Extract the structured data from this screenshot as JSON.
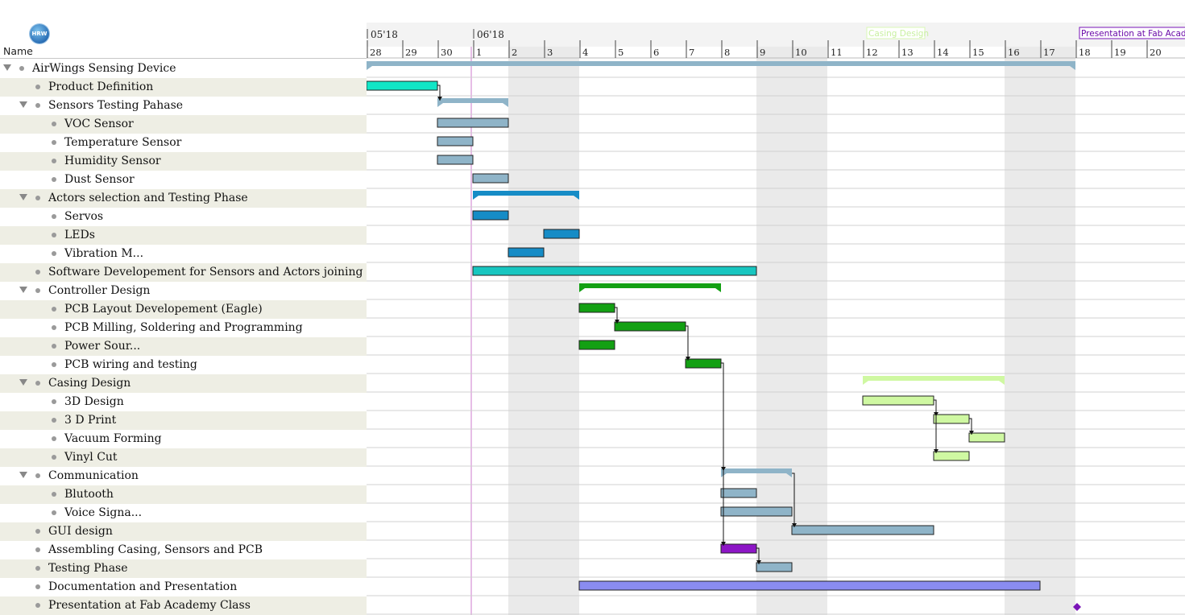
{
  "header": {
    "logo_text": "HRW",
    "name_column": "Name",
    "months": [
      {
        "label": "05'18",
        "day_index": 0
      },
      {
        "label": "06'18",
        "day_index": 3
      }
    ],
    "days": [
      "28",
      "29",
      "30",
      "1",
      "2",
      "3",
      "4",
      "5",
      "6",
      "7",
      "8",
      "9",
      "10",
      "11",
      "12",
      "13",
      "14",
      "15",
      "16",
      "17",
      "18",
      "19",
      "20"
    ],
    "milestone_flags": [
      {
        "label": "Casing Design",
        "day_index": 14
      },
      {
        "label": "Presentation at Fab Academy Class",
        "day_index": 20
      }
    ]
  },
  "colors": {
    "summary": "#8fb4c8",
    "default": "#8fb4c8",
    "teal": "#11e6c6",
    "blue": "#168cc6",
    "cyan": "#18c6c0",
    "green": "#13a013",
    "light_green": "#cff8a2",
    "purple": "#8d16c6",
    "lavender": "#8a8cf0",
    "diamond": "#7a14b8",
    "weekend": "#eaeaea",
    "today_line": "#e6bde6"
  },
  "tasks": [
    {
      "name": "AirWings Sensing Device",
      "level": 0,
      "expandable": true,
      "summary": true,
      "start": 0,
      "end": 20,
      "color": "summary"
    },
    {
      "name": "Product Definition",
      "level": 1,
      "expandable": false,
      "start": 0,
      "end": 2,
      "color": "teal"
    },
    {
      "name": "Sensors Testing Pahase",
      "level": 1,
      "expandable": true,
      "summary": true,
      "start": 2,
      "end": 4,
      "color": "summary"
    },
    {
      "name": "VOC Sensor",
      "level": 2,
      "expandable": false,
      "start": 2,
      "end": 4,
      "color": "default"
    },
    {
      "name": "Temperature Sensor",
      "level": 2,
      "expandable": false,
      "start": 2,
      "end": 3,
      "color": "default"
    },
    {
      "name": "Humidity Sensor",
      "level": 2,
      "expandable": false,
      "start": 2,
      "end": 3,
      "color": "default"
    },
    {
      "name": "Dust Sensor",
      "level": 2,
      "expandable": false,
      "start": 3,
      "end": 4,
      "color": "default"
    },
    {
      "name": "Actors selection and Testing Phase",
      "level": 1,
      "expandable": true,
      "summary": true,
      "start": 3,
      "end": 6,
      "color": "blue"
    },
    {
      "name": "Servos",
      "level": 2,
      "expandable": false,
      "start": 3,
      "end": 4,
      "color": "blue"
    },
    {
      "name": "LEDs",
      "level": 2,
      "expandable": false,
      "start": 5,
      "end": 6,
      "color": "blue"
    },
    {
      "name": "Vibration M...",
      "level": 2,
      "expandable": false,
      "start": 4,
      "end": 5,
      "color": "blue"
    },
    {
      "name": "Software Developement for Sensors and Actors joining",
      "level": 1,
      "expandable": false,
      "start": 3,
      "end": 11,
      "color": "cyan"
    },
    {
      "name": "Controller Design",
      "level": 1,
      "expandable": true,
      "summary": true,
      "start": 6,
      "end": 10,
      "color": "green"
    },
    {
      "name": "PCB Layout Developement (Eagle)",
      "level": 2,
      "expandable": false,
      "start": 6,
      "end": 7,
      "color": "green"
    },
    {
      "name": "PCB Milling, Soldering and Programming",
      "level": 2,
      "expandable": false,
      "start": 7,
      "end": 9,
      "color": "green"
    },
    {
      "name": "Power Sour...",
      "level": 2,
      "expandable": false,
      "start": 6,
      "end": 7,
      "color": "green"
    },
    {
      "name": "PCB wiring and testing",
      "level": 2,
      "expandable": false,
      "start": 9,
      "end": 10,
      "color": "green"
    },
    {
      "name": "Casing Design",
      "level": 1,
      "expandable": true,
      "summary": true,
      "start": 14,
      "end": 18,
      "color": "light_green"
    },
    {
      "name": "3D Design",
      "level": 2,
      "expandable": false,
      "start": 14,
      "end": 16,
      "color": "light_green"
    },
    {
      "name": "3 D Print",
      "level": 2,
      "expandable": false,
      "start": 16,
      "end": 17,
      "color": "light_green"
    },
    {
      "name": "Vacuum Forming",
      "level": 2,
      "expandable": false,
      "start": 17,
      "end": 18,
      "color": "light_green"
    },
    {
      "name": "Vinyl Cut",
      "level": 2,
      "expandable": false,
      "start": 16,
      "end": 17,
      "color": "light_green"
    },
    {
      "name": "Communication",
      "level": 1,
      "expandable": true,
      "summary": true,
      "start": 10,
      "end": 12,
      "color": "summary"
    },
    {
      "name": "Blutooth",
      "level": 2,
      "expandable": false,
      "start": 10,
      "end": 11,
      "color": "default"
    },
    {
      "name": "Voice Signa...",
      "level": 2,
      "expandable": false,
      "start": 10,
      "end": 12,
      "color": "default"
    },
    {
      "name": "GUI design",
      "level": 1,
      "expandable": false,
      "start": 12,
      "end": 16,
      "color": "default"
    },
    {
      "name": "Assembling Casing, Sensors and PCB",
      "level": 1,
      "expandable": false,
      "start": 10,
      "end": 11,
      "color": "purple"
    },
    {
      "name": "Testing Phase",
      "level": 1,
      "expandable": false,
      "start": 11,
      "end": 12,
      "color": "default"
    },
    {
      "name": "Documentation and Presentation",
      "level": 1,
      "expandable": false,
      "start": 6,
      "end": 19,
      "color": "lavender"
    },
    {
      "name": "Presentation at Fab Academy Class",
      "level": 1,
      "expandable": false,
      "milestone": true,
      "start": 20,
      "end": 20,
      "color": "diamond"
    }
  ],
  "dependencies": [
    [
      1,
      2
    ],
    [
      13,
      14
    ],
    [
      14,
      16
    ],
    [
      16,
      22
    ],
    [
      16,
      26
    ],
    [
      18,
      19
    ],
    [
      19,
      20
    ],
    [
      18,
      21
    ],
    [
      22,
      25
    ],
    [
      26,
      27
    ]
  ]
}
